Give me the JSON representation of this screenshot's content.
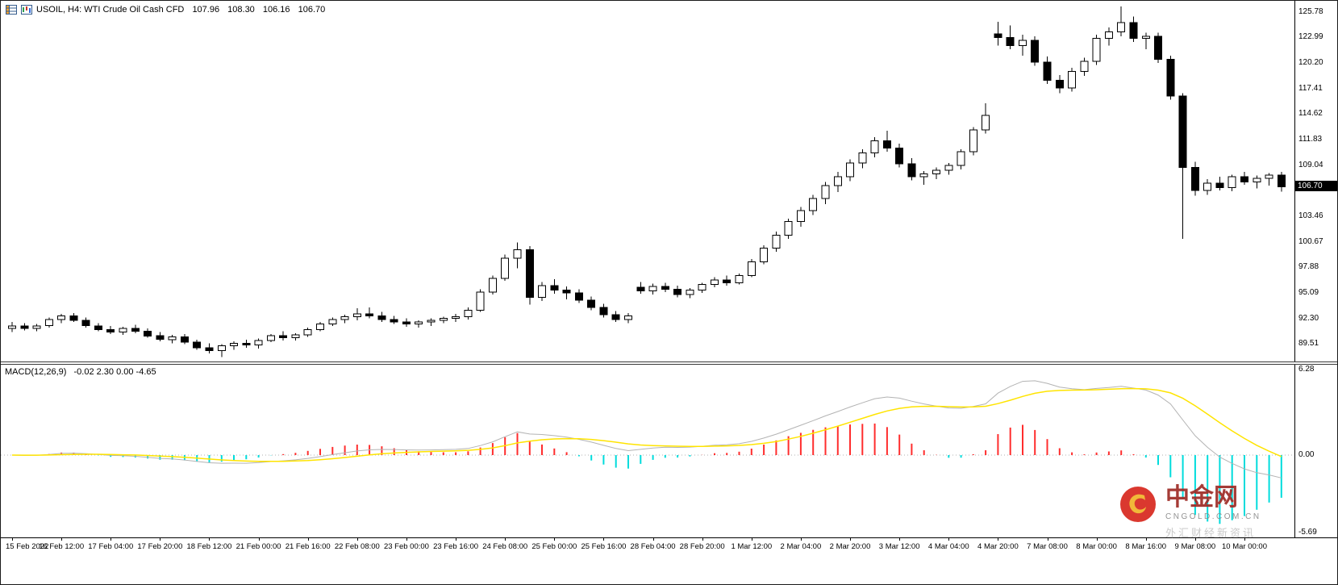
{
  "header": {
    "title": "USOIL, H4: WTI Crude Oil Cash CFD",
    "open": "107.96",
    "high": "108.30",
    "low": "106.16",
    "close": "106.70",
    "icons": [
      "table-icon",
      "mini-chart-icon"
    ]
  },
  "watermark": {
    "brand": "中金网",
    "domain": "CNGOLD.COM.CN",
    "tagline": "外汇财经新资讯",
    "logo_ring_color": "#d7281e",
    "logo_swirl_color": "#f0b429"
  },
  "chart_data": [
    {
      "type": "candlestick",
      "symbol": "USOIL",
      "timeframe": "H4",
      "description": "WTI Crude Oil Cash CFD",
      "ylim": [
        87.6,
        127.0
      ],
      "y_axis_labels": [
        "125.78",
        "122.99",
        "120.20",
        "117.41",
        "114.62",
        "111.83",
        "109.04",
        "103.46",
        "100.67",
        "97.88",
        "95.09",
        "92.30",
        "89.51"
      ],
      "current_price": "106.70",
      "bars_per_x_label": 4,
      "x_axis_labels": [
        "15 Feb 2022",
        "16 Feb 12:00",
        "17 Feb 04:00",
        "17 Feb 20:00",
        "18 Feb 12:00",
        "21 Feb 00:00",
        "21 Feb 16:00",
        "22 Feb 08:00",
        "23 Feb 00:00",
        "23 Feb 16:00",
        "24 Feb 08:00",
        "25 Feb 00:00",
        "25 Feb 16:00",
        "28 Feb 04:00",
        "28 Feb 20:00",
        "1 Mar 12:00",
        "2 Mar 04:00",
        "2 Mar 20:00",
        "3 Mar 12:00",
        "4 Mar 04:00",
        "4 Mar 20:00",
        "7 Mar 08:00",
        "8 Mar 00:00",
        "8 Mar 16:00",
        "9 Mar 08:00",
        "10 Mar 00:00"
      ],
      "up_color": "#ffffff",
      "down_color": "#000000",
      "wick_color": "#000000",
      "ohlc": [
        [
          91.2,
          91.9,
          90.8,
          91.5
        ],
        [
          91.5,
          91.8,
          91.0,
          91.2
        ],
        [
          91.2,
          91.7,
          90.9,
          91.5
        ],
        [
          91.5,
          92.4,
          91.3,
          92.2
        ],
        [
          92.2,
          92.8,
          91.8,
          92.6
        ],
        [
          92.6,
          92.9,
          91.9,
          92.1
        ],
        [
          92.1,
          92.4,
          91.3,
          91.5
        ],
        [
          91.5,
          91.8,
          90.9,
          91.1
        ],
        [
          91.1,
          91.5,
          90.6,
          90.8
        ],
        [
          90.8,
          91.4,
          90.5,
          91.2
        ],
        [
          91.2,
          91.6,
          90.7,
          90.9
        ],
        [
          90.9,
          91.2,
          90.2,
          90.4
        ],
        [
          90.4,
          90.8,
          89.8,
          90.0
        ],
        [
          90.0,
          90.5,
          89.6,
          90.3
        ],
        [
          90.3,
          90.6,
          89.5,
          89.7
        ],
        [
          89.7,
          90.0,
          88.9,
          89.1
        ],
        [
          89.1,
          89.6,
          88.5,
          88.8
        ],
        [
          88.8,
          89.5,
          88.1,
          89.3
        ],
        [
          89.3,
          89.8,
          88.9,
          89.6
        ],
        [
          89.6,
          90.0,
          89.1,
          89.4
        ],
        [
          89.4,
          90.1,
          89.0,
          89.9
        ],
        [
          89.9,
          90.6,
          89.7,
          90.4
        ],
        [
          90.4,
          90.9,
          89.9,
          90.2
        ],
        [
          90.2,
          90.7,
          89.9,
          90.5
        ],
        [
          90.5,
          91.3,
          90.3,
          91.1
        ],
        [
          91.1,
          91.9,
          90.9,
          91.7
        ],
        [
          91.7,
          92.4,
          91.5,
          92.2
        ],
        [
          92.2,
          92.7,
          91.8,
          92.5
        ],
        [
          92.5,
          93.4,
          92.1,
          92.8
        ],
        [
          92.8,
          93.5,
          92.3,
          92.6
        ],
        [
          92.6,
          93.0,
          91.9,
          92.2
        ],
        [
          92.2,
          92.6,
          91.7,
          91.9
        ],
        [
          91.9,
          92.3,
          91.4,
          91.7
        ],
        [
          91.7,
          92.1,
          91.3,
          91.9
        ],
        [
          91.9,
          92.3,
          91.5,
          92.1
        ],
        [
          92.1,
          92.5,
          91.8,
          92.3
        ],
        [
          92.3,
          92.8,
          91.9,
          92.5
        ],
        [
          92.5,
          93.5,
          92.2,
          93.2
        ],
        [
          93.2,
          95.5,
          93.0,
          95.2
        ],
        [
          95.2,
          97.0,
          94.9,
          96.7
        ],
        [
          96.7,
          99.3,
          96.4,
          98.9
        ],
        [
          98.9,
          100.6,
          97.8,
          99.8
        ],
        [
          99.8,
          100.2,
          93.8,
          94.6
        ],
        [
          94.6,
          96.3,
          94.2,
          95.9
        ],
        [
          95.9,
          96.6,
          95.0,
          95.4
        ],
        [
          95.4,
          95.8,
          94.4,
          95.1
        ],
        [
          95.1,
          95.5,
          94.0,
          94.3
        ],
        [
          94.3,
          94.7,
          93.2,
          93.5
        ],
        [
          93.5,
          93.9,
          92.4,
          92.7
        ],
        [
          92.7,
          93.1,
          91.9,
          92.2
        ],
        [
          92.2,
          92.9,
          91.8,
          92.6
        ],
        [
          95.7,
          96.3,
          95.0,
          95.3
        ],
        [
          95.3,
          96.1,
          94.9,
          95.8
        ],
        [
          95.8,
          96.2,
          95.2,
          95.5
        ],
        [
          95.5,
          95.9,
          94.6,
          94.9
        ],
        [
          94.9,
          95.6,
          94.5,
          95.4
        ],
        [
          95.4,
          96.2,
          95.1,
          96.0
        ],
        [
          96.0,
          96.8,
          95.7,
          96.5
        ],
        [
          96.5,
          97.0,
          95.9,
          96.2
        ],
        [
          96.2,
          97.2,
          96.0,
          97.0
        ],
        [
          97.0,
          98.8,
          96.8,
          98.5
        ],
        [
          98.5,
          100.3,
          98.2,
          100.0
        ],
        [
          100.0,
          101.8,
          99.6,
          101.4
        ],
        [
          101.4,
          103.2,
          101.0,
          102.9
        ],
        [
          102.9,
          104.5,
          102.3,
          104.1
        ],
        [
          104.1,
          105.8,
          103.6,
          105.4
        ],
        [
          105.4,
          107.2,
          104.8,
          106.8
        ],
        [
          106.8,
          108.3,
          106.1,
          107.8
        ],
        [
          107.8,
          109.7,
          107.3,
          109.3
        ],
        [
          109.3,
          110.8,
          108.7,
          110.4
        ],
        [
          110.4,
          112.1,
          109.9,
          111.7
        ],
        [
          111.7,
          112.8,
          110.5,
          110.9
        ],
        [
          110.9,
          111.4,
          108.8,
          109.2
        ],
        [
          109.2,
          109.8,
          107.4,
          107.8
        ],
        [
          107.8,
          108.4,
          106.9,
          108.1
        ],
        [
          108.1,
          108.8,
          107.5,
          108.5
        ],
        [
          108.5,
          109.3,
          108.0,
          109.0
        ],
        [
          109.0,
          110.8,
          108.6,
          110.5
        ],
        [
          110.5,
          113.2,
          110.1,
          112.9
        ],
        [
          112.9,
          115.8,
          112.5,
          114.5
        ],
        [
          123.4,
          124.7,
          122.1,
          123.0
        ],
        [
          123.0,
          124.3,
          121.7,
          122.1
        ],
        [
          122.1,
          123.3,
          121.0,
          122.7
        ],
        [
          122.7,
          123.1,
          119.9,
          120.3
        ],
        [
          120.3,
          120.9,
          117.9,
          118.3
        ],
        [
          118.3,
          118.9,
          116.9,
          117.5
        ],
        [
          117.5,
          119.7,
          117.1,
          119.3
        ],
        [
          119.3,
          120.8,
          118.8,
          120.4
        ],
        [
          120.4,
          123.3,
          120.0,
          122.9
        ],
        [
          122.9,
          124.1,
          122.1,
          123.6
        ],
        [
          123.6,
          126.4,
          123.1,
          124.6
        ],
        [
          124.6,
          125.3,
          122.5,
          122.9
        ],
        [
          122.9,
          123.5,
          121.7,
          123.1
        ],
        [
          123.1,
          123.5,
          120.2,
          120.6
        ],
        [
          120.6,
          121.0,
          116.2,
          116.6
        ],
        [
          116.6,
          116.9,
          101.0,
          108.8
        ],
        [
          108.8,
          109.4,
          105.7,
          106.3
        ],
        [
          106.3,
          107.5,
          105.8,
          107.1
        ],
        [
          107.1,
          107.8,
          106.3,
          106.6
        ],
        [
          106.6,
          108.0,
          106.2,
          107.8
        ],
        [
          107.8,
          108.3,
          106.9,
          107.2
        ],
        [
          107.2,
          107.9,
          106.5,
          107.6
        ],
        [
          107.6,
          108.2,
          106.8,
          107.96
        ],
        [
          107.96,
          108.3,
          106.16,
          106.7
        ]
      ]
    },
    {
      "type": "macd",
      "label": "MACD(12,26,9)",
      "params": [
        12,
        26,
        9
      ],
      "values_text": "-0.02 2.30 0.00 -4.65",
      "ylim": [
        -5.69,
        6.28
      ],
      "y_axis_labels": [
        "6.28",
        "0.00",
        "-5.69"
      ],
      "hist_scale": 2,
      "hist_up_color": "#ff2d2d",
      "hist_down_color": "#00dcdc",
      "macd_line_color": "#b3b3b3",
      "signal_line_color": "#ffe400",
      "zero_line_color": "#b0b0b0",
      "derived_from": "close prices of the candlestick series"
    }
  ]
}
